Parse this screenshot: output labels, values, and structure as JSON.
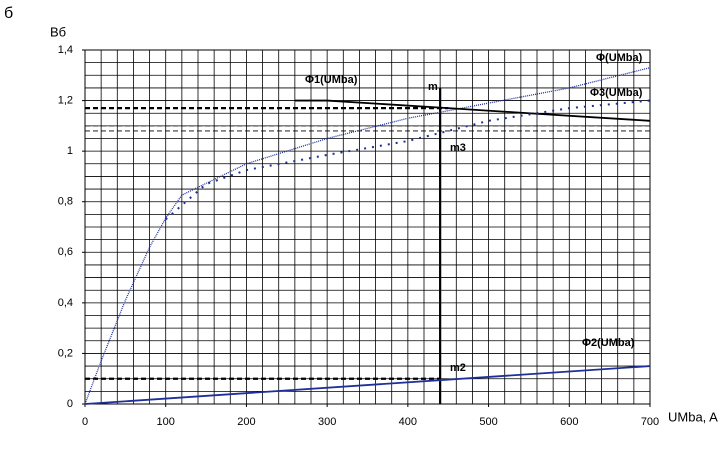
{
  "chart_data": {
    "type": "line",
    "panel_label": "б",
    "y_label": "Вб",
    "x_label": "UMba, A",
    "xlim": [
      0,
      700
    ],
    "ylim": [
      0,
      1.4
    ],
    "xticks": [
      0,
      100,
      200,
      300,
      400,
      500,
      600,
      700
    ],
    "yticks": [
      0,
      {
        "value": 0.2,
        "label": "0,2"
      },
      {
        "value": 0.4,
        "label": "0,4"
      },
      {
        "value": 0.6,
        "label": "0,6"
      },
      {
        "value": 0.8,
        "label": "0,8"
      },
      1,
      {
        "value": 1.2,
        "label": "1,2"
      },
      {
        "value": 1.4,
        "label": "1,4"
      }
    ],
    "grid": true,
    "xgrid_step": 20,
    "ygrid_step": 0.05,
    "series": [
      {
        "name": "Φ(UMba)",
        "color": "#1f2f9a",
        "style": "dotted",
        "x": [
          0,
          20,
          50,
          80,
          100,
          120,
          200,
          300,
          400,
          450,
          500,
          600,
          700
        ],
        "values": [
          0,
          0.17,
          0.41,
          0.62,
          0.735,
          0.826,
          0.95,
          1.05,
          1.13,
          1.16,
          1.19,
          1.25,
          1.33
        ]
      },
      {
        "name": "Φ1(UMba)",
        "color": "#000000",
        "style": "solid",
        "x": [
          260,
          300,
          450,
          550,
          700
        ],
        "values": [
          1.2,
          1.2,
          1.17,
          1.15,
          1.12
        ]
      },
      {
        "name": "Φ3(UMba)",
        "color": "#1f2f9a",
        "style": "dots",
        "x": [
          100,
          150,
          200,
          300,
          400,
          450,
          500,
          600,
          700
        ],
        "values": [
          0.73,
          0.87,
          0.925,
          0.985,
          1.04,
          1.08,
          1.12,
          1.17,
          1.2
        ]
      },
      {
        "name": "Φ2(UMba)",
        "color": "#1f2f9a",
        "style": "solid",
        "x": [
          0,
          700
        ],
        "values": [
          0,
          0.15
        ]
      }
    ],
    "reference_lines": [
      {
        "x": [
          0,
          450
        ],
        "y": [
          1.17,
          1.17
        ],
        "style": "thickdash"
      },
      {
        "x": [
          0,
          700
        ],
        "y": [
          1.1,
          1.1
        ],
        "style": "thindash"
      },
      {
        "x": [
          0,
          700
        ],
        "y": [
          1.08,
          1.08
        ],
        "style": "thindash"
      },
      {
        "x": [
          0,
          440
        ],
        "y": [
          0.1,
          0.1
        ],
        "style": "thickdash"
      },
      {
        "x": [
          440,
          440
        ],
        "y": [
          0,
          1.25
        ],
        "style": "solid"
      }
    ],
    "annotations": [
      "m",
      "m3",
      "m2"
    ]
  }
}
